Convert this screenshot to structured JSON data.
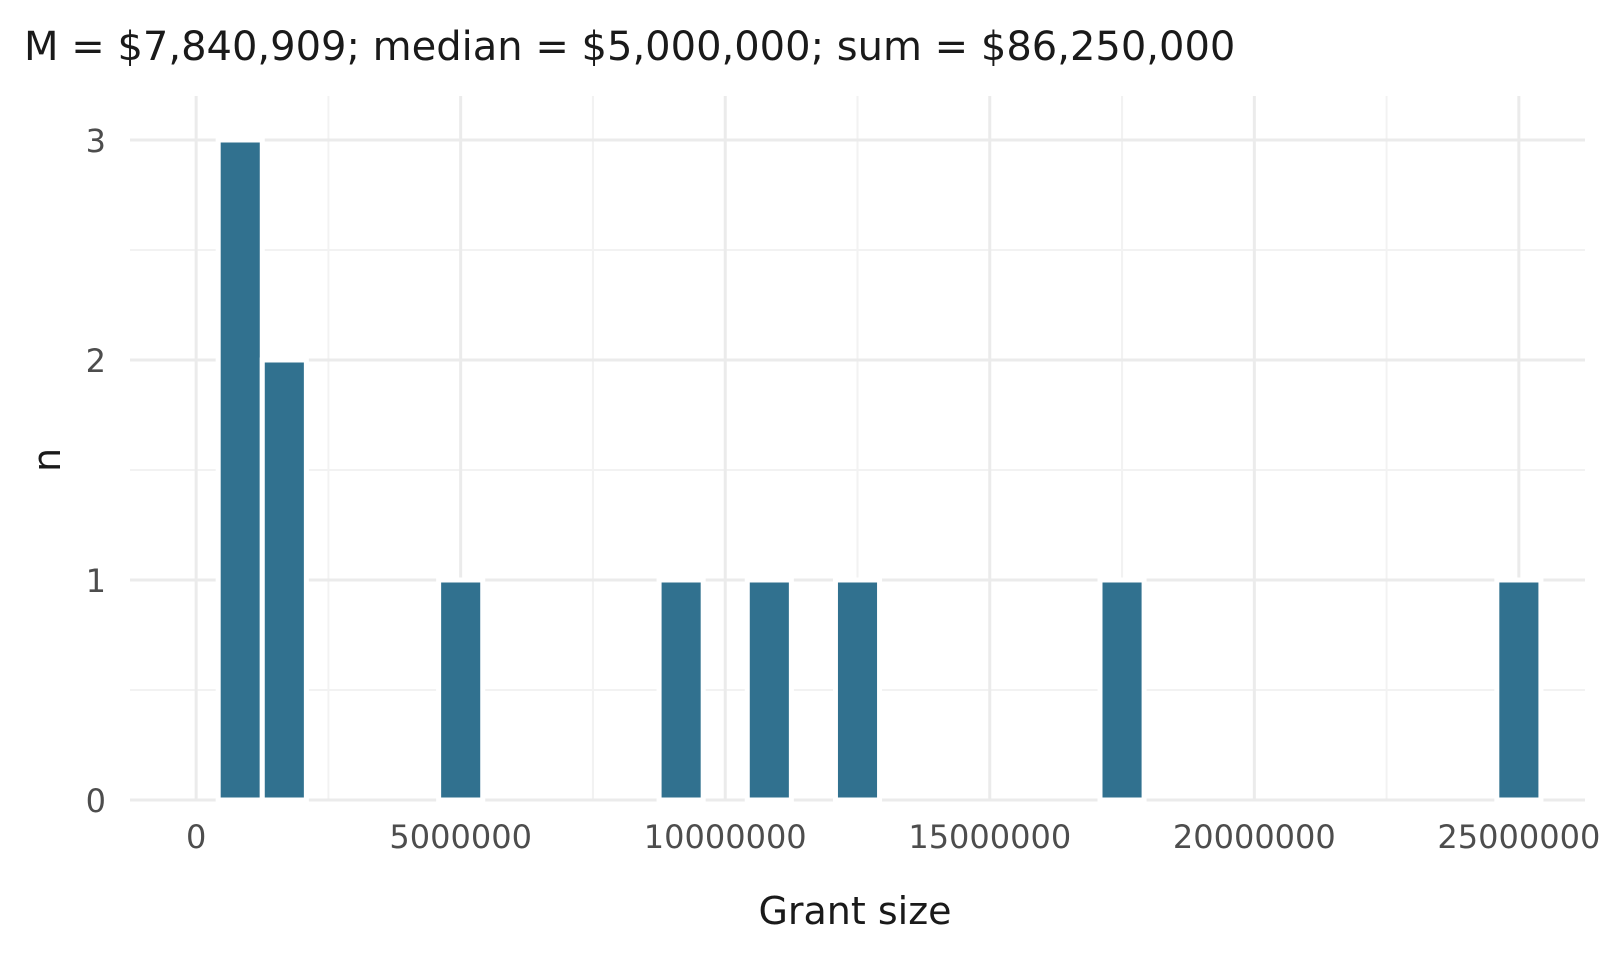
{
  "chart_data": {
    "type": "bar",
    "title": "M = $7,840,909; median = $5,000,000; sum = $86,250,000",
    "xlabel": "Grant size",
    "ylabel": "n",
    "xlim": [
      -1250000,
      26250000
    ],
    "ylim": [
      0,
      3.2
    ],
    "bin_width": 833333,
    "x_ticks": [
      0,
      5000000,
      10000000,
      15000000,
      20000000,
      25000000
    ],
    "x_tick_labels": [
      "0",
      "5000000",
      "10000000",
      "15000000",
      "20000000",
      "25000000"
    ],
    "y_ticks": [
      0,
      1,
      2,
      3
    ],
    "y_tick_labels": [
      "0",
      "1",
      "2",
      "3"
    ],
    "bins": [
      {
        "center": 833333,
        "count": 3
      },
      {
        "center": 1666667,
        "count": 2
      },
      {
        "center": 5000000,
        "count": 1
      },
      {
        "center": 9166667,
        "count": 1
      },
      {
        "center": 10833333,
        "count": 1
      },
      {
        "center": 12500000,
        "count": 1
      },
      {
        "center": 17500000,
        "count": 1
      },
      {
        "center": 25000000,
        "count": 1
      }
    ],
    "bar_color": "#31718f",
    "grid": true,
    "legend": "none"
  }
}
